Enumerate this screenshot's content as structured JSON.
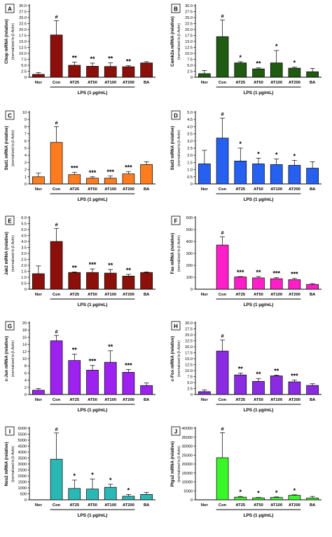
{
  "chart_data": [
    {
      "type": "bar",
      "panel": "A",
      "ylabel": "Chop mRNA (relative)",
      "ylabel2": "(normalized to β-Actin)",
      "xlabel": "LPS (1 µg/mL)",
      "categories": [
        "Nor",
        "Con",
        "AT25",
        "AT50",
        "AT100",
        "AT200",
        "BA"
      ],
      "values": [
        1.2,
        17.7,
        5.0,
        4.6,
        4.5,
        4.4,
        6.0
      ],
      "errors": [
        0.7,
        6.0,
        1.3,
        1.3,
        1.5,
        0.4,
        0.5
      ],
      "significance": [
        "",
        "#",
        "**",
        "**",
        "**",
        "**",
        ""
      ],
      "ylim": [
        0,
        30
      ],
      "yticks": [
        "0",
        "2.5",
        "5.0",
        "7.5",
        "10.0",
        "12.5",
        "15.0",
        "17.5",
        "20.0",
        "22.5",
        "25.0",
        "27.5",
        "30.0"
      ],
      "color": "#8b0f0a"
    },
    {
      "type": "bar",
      "panel": "B",
      "ylabel": "Camk2a mRNA (relative)",
      "ylabel2": "(normalized to β-Actin)",
      "xlabel": "LPS (1 µg/mL)",
      "categories": [
        "Nor",
        "Con",
        "AT25",
        "AT50",
        "AT100",
        "AT200",
        "BA"
      ],
      "values": [
        1.5,
        17.0,
        6.0,
        3.5,
        6.0,
        3.8,
        2.3
      ],
      "errors": [
        1.3,
        7.0,
        0.5,
        0.4,
        5.2,
        0.4,
        1.4
      ],
      "significance": [
        "",
        "#",
        "*",
        "**",
        "*",
        "*",
        ""
      ],
      "ylim": [
        0,
        30
      ],
      "yticks": [
        "0",
        "2.5",
        "5.0",
        "7.5",
        "10.0",
        "12.5",
        "15.0",
        "17.5",
        "20.0",
        "22.5",
        "25.0",
        "27.5",
        "30.0"
      ],
      "color": "#1f5b10"
    },
    {
      "type": "bar",
      "panel": "C",
      "ylabel": "Stat1 mRNA (relative)",
      "ylabel2": "(normalized to β-Actin)",
      "xlabel": "LPS (1 µg/mL)",
      "categories": [
        "Nor",
        "Con",
        "AT25",
        "AT50",
        "AT100",
        "AT200",
        "BA"
      ],
      "values": [
        1.0,
        5.8,
        1.3,
        0.8,
        0.8,
        1.4,
        2.7
      ],
      "errors": [
        0.5,
        2.2,
        0.3,
        0.2,
        0.3,
        0.3,
        0.4
      ],
      "significance": [
        "",
        "#",
        "***",
        "***",
        "***",
        "***",
        ""
      ],
      "ylim": [
        0,
        10
      ],
      "yticks": [
        "0",
        "1",
        "2",
        "3",
        "4",
        "5",
        "6",
        "7",
        "8",
        "9",
        "10"
      ],
      "color": "#ff7d1f"
    },
    {
      "type": "bar",
      "panel": "D",
      "ylabel": "Stat3 mRNA (relative)",
      "ylabel2": "(normalized to β-Actin)",
      "xlabel": "LPS (1 µg/mL)",
      "categories": [
        "Nor",
        "Con",
        "AT25",
        "AT50",
        "AT100",
        "AT200",
        "BA"
      ],
      "values": [
        1.4,
        3.2,
        1.6,
        1.4,
        1.35,
        1.3,
        1.1
      ],
      "errors": [
        0.95,
        1.4,
        0.9,
        0.4,
        0.4,
        0.35,
        0.45
      ],
      "significance": [
        "",
        "#",
        "*",
        "*",
        "*",
        "*",
        ""
      ],
      "ylim": [
        0,
        5
      ],
      "yticks": [
        "0",
        "0.5",
        "1.0",
        "1.5",
        "2.0",
        "2.5",
        "3.0",
        "3.5",
        "4.0",
        "4.5",
        "5.0"
      ],
      "color": "#2560f0"
    },
    {
      "type": "bar",
      "panel": "E",
      "ylabel": "Jak2 mRNA (relative)",
      "ylabel2": "(normalized to β-Actin)",
      "xlabel": "LPS (1 µg/mL)",
      "categories": [
        "Nor",
        "Con",
        "AT25",
        "AT50",
        "AT100",
        "AT200",
        "BA"
      ],
      "values": [
        1.3,
        4.0,
        1.4,
        1.4,
        1.35,
        1.1,
        1.4
      ],
      "errors": [
        0.65,
        1.1,
        0.05,
        0.3,
        0.3,
        0.15,
        0.05
      ],
      "significance": [
        "",
        "#",
        "**",
        "***",
        "**",
        "**",
        ""
      ],
      "ylim": [
        0,
        6
      ],
      "yticks": [
        "0",
        "0.5",
        "1.0",
        "1.5",
        "2.0",
        "2.5",
        "3.0",
        "3.5",
        "4.0",
        "4.5",
        "5.0",
        "5.5",
        "6.0"
      ],
      "color": "#8b0f0a"
    },
    {
      "type": "bar",
      "panel": "F",
      "ylabel": "Fas mRNA (relative)",
      "ylabel2": "(normalized to β-Actin)",
      "xlabel": "LPS (1 µg/mL)",
      "categories": [
        "Nor",
        "Con",
        "AT25",
        "AT50",
        "AT100",
        "AT200",
        "BA"
      ],
      "values": [
        0,
        370,
        103,
        95,
        88,
        80,
        40
      ],
      "errors": [
        0,
        70,
        3,
        12,
        8,
        10,
        7
      ],
      "significance": [
        "",
        "#",
        "***",
        "**",
        "***",
        "***",
        ""
      ],
      "ylim": [
        0,
        600
      ],
      "yticks": [
        "0",
        "100",
        "200",
        "300",
        "400",
        "500",
        "600"
      ],
      "color": "#ff1fc8"
    },
    {
      "type": "bar",
      "panel": "G",
      "ylabel": "c-Jun mRNA (relative)",
      "ylabel2": "(normalized to β-Actin)",
      "xlabel": "LPS (1 µg/mL)",
      "categories": [
        "Nor",
        "Con",
        "AT25",
        "AT50",
        "AT100",
        "AT200",
        "BA"
      ],
      "values": [
        1.2,
        15.0,
        9.5,
        6.8,
        9.0,
        6.2,
        2.5
      ],
      "errors": [
        0.5,
        1.5,
        1.8,
        1.3,
        3.2,
        0.8,
        0.7
      ],
      "significance": [
        "",
        "#",
        "**",
        "***",
        "**",
        "***",
        ""
      ],
      "ylim": [
        0,
        20
      ],
      "yticks": [
        "0",
        "2",
        "4",
        "6",
        "8",
        "10",
        "12",
        "14",
        "16",
        "18",
        "20"
      ],
      "color": "#9d22ef"
    },
    {
      "type": "bar",
      "panel": "H",
      "ylabel": "c-Fos mRNA (relative)",
      "ylabel2": "(normalized to β-Actin)",
      "xlabel": "LPS (1 µg/mL)",
      "categories": [
        "Nor",
        "Con",
        "AT25",
        "AT50",
        "AT100",
        "AT200",
        "BA"
      ],
      "values": [
        1.2,
        18.2,
        8.2,
        5.5,
        7.8,
        5.3,
        3.8
      ],
      "errors": [
        0.7,
        4.7,
        0.8,
        1.2,
        0.3,
        0.8,
        0.7
      ],
      "significance": [
        "",
        "#",
        "**",
        "**",
        "**",
        "***",
        ""
      ],
      "ylim": [
        0,
        30
      ],
      "yticks": [
        "0",
        "2.5",
        "5.0",
        "7.5",
        "10.0",
        "12.5",
        "15.0",
        "17.5",
        "20.0",
        "22.5",
        "25.0",
        "27.5",
        "30.0"
      ],
      "color": "#8a2be2"
    },
    {
      "type": "bar",
      "panel": "I",
      "ylabel": "Nos2 mRNA (relative)",
      "ylabel2": "(normalized to β-Actin)",
      "xlabel": "LPS (1 µg/mL)",
      "categories": [
        "Nor",
        "Con",
        "AT25",
        "AT50",
        "AT100",
        "AT200",
        "BA"
      ],
      "values": [
        0,
        3400,
        950,
        900,
        1050,
        300,
        450
      ],
      "errors": [
        0,
        2200,
        700,
        850,
        250,
        150,
        180
      ],
      "significance": [
        "",
        "#",
        "*",
        "*",
        "*",
        "*",
        ""
      ],
      "ylim": [
        0,
        6000
      ],
      "yticks": [
        "0",
        "500",
        "1000",
        "1500",
        "2000",
        "2500",
        "3000",
        "3500",
        "4000",
        "4500",
        "5000",
        "5500",
        "6000"
      ],
      "color": "#2ab8b5"
    },
    {
      "type": "bar",
      "panel": "J",
      "ylabel": "Ptgs2 mRNA (relative)",
      "ylabel2": "(normalized to β-Actin)",
      "xlabel": "LPS (1 µg/mL)",
      "categories": [
        "Nor",
        "Con",
        "AT25",
        "AT50",
        "AT100",
        "AT200",
        "BA"
      ],
      "values": [
        0,
        23500,
        1500,
        1100,
        1300,
        2500,
        1000
      ],
      "errors": [
        0,
        14000,
        400,
        200,
        300,
        300,
        900
      ],
      "significance": [
        "",
        "#",
        "*",
        "*",
        "*",
        "*",
        ""
      ],
      "ylim": [
        0,
        40000
      ],
      "yticks": [
        "0",
        "5000",
        "10000",
        "15000",
        "20000",
        "25000",
        "30000",
        "35000",
        "40000"
      ],
      "color": "#3af72a"
    }
  ]
}
